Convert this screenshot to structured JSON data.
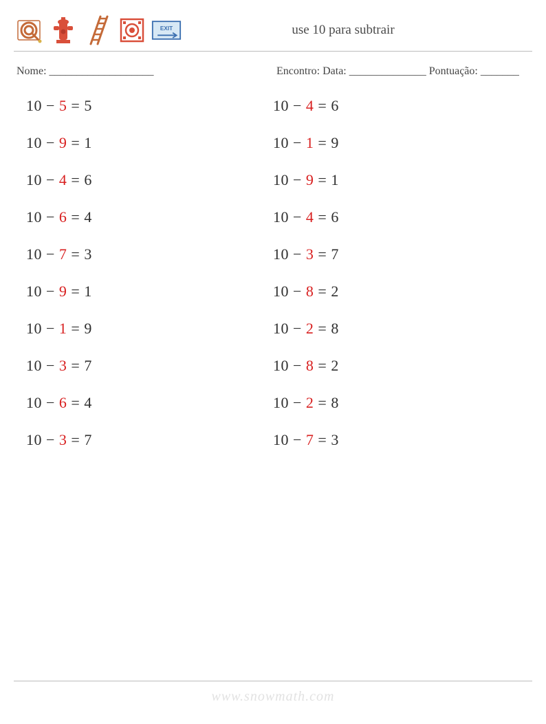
{
  "header": {
    "title": "use 10 para subtrair",
    "icons": [
      "fire-hose",
      "hydrant",
      "ladder",
      "fire-alarm",
      "exit-sign"
    ]
  },
  "info": {
    "name_label": "Nome: ___________________",
    "right_label": "Encontro: Data: ______________   Pontuação: _______"
  },
  "colors": {
    "text": "#3a3a3a",
    "highlight": "#d81f1f",
    "icon_red": "#d94f3a",
    "icon_orange": "#e08a3c",
    "icon_blue": "#6fa8d8",
    "icon_border": "#3b6fb0",
    "watermark": "#e2e2e2",
    "divider": "#bcbcbc",
    "background": "#ffffff"
  },
  "problems": {
    "left": [
      {
        "a": "10",
        "op": "−",
        "b": "5",
        "eq": "=",
        "ans": "5"
      },
      {
        "a": "10",
        "op": "−",
        "b": "9",
        "eq": "=",
        "ans": "1"
      },
      {
        "a": "10",
        "op": "−",
        "b": "4",
        "eq": "=",
        "ans": "6"
      },
      {
        "a": "10",
        "op": "−",
        "b": "6",
        "eq": "=",
        "ans": "4"
      },
      {
        "a": "10",
        "op": "−",
        "b": "7",
        "eq": "=",
        "ans": "3"
      },
      {
        "a": "10",
        "op": "−",
        "b": "9",
        "eq": "=",
        "ans": "1"
      },
      {
        "a": "10",
        "op": "−",
        "b": "1",
        "eq": "=",
        "ans": "9"
      },
      {
        "a": "10",
        "op": "−",
        "b": "3",
        "eq": "=",
        "ans": "7"
      },
      {
        "a": "10",
        "op": "−",
        "b": "6",
        "eq": "=",
        "ans": "4"
      },
      {
        "a": "10",
        "op": "−",
        "b": "3",
        "eq": "=",
        "ans": "7"
      }
    ],
    "right": [
      {
        "a": "10",
        "op": "−",
        "b": "4",
        "eq": "=",
        "ans": "6"
      },
      {
        "a": "10",
        "op": "−",
        "b": "1",
        "eq": "=",
        "ans": "9"
      },
      {
        "a": "10",
        "op": "−",
        "b": "9",
        "eq": "=",
        "ans": "1"
      },
      {
        "a": "10",
        "op": "−",
        "b": "4",
        "eq": "=",
        "ans": "6"
      },
      {
        "a": "10",
        "op": "−",
        "b": "3",
        "eq": "=",
        "ans": "7"
      },
      {
        "a": "10",
        "op": "−",
        "b": "8",
        "eq": "=",
        "ans": "2"
      },
      {
        "a": "10",
        "op": "−",
        "b": "2",
        "eq": "=",
        "ans": "8"
      },
      {
        "a": "10",
        "op": "−",
        "b": "8",
        "eq": "=",
        "ans": "2"
      },
      {
        "a": "10",
        "op": "−",
        "b": "2",
        "eq": "=",
        "ans": "8"
      },
      {
        "a": "10",
        "op": "−",
        "b": "7",
        "eq": "=",
        "ans": "3"
      }
    ]
  },
  "watermark": "www.snowmath.com"
}
